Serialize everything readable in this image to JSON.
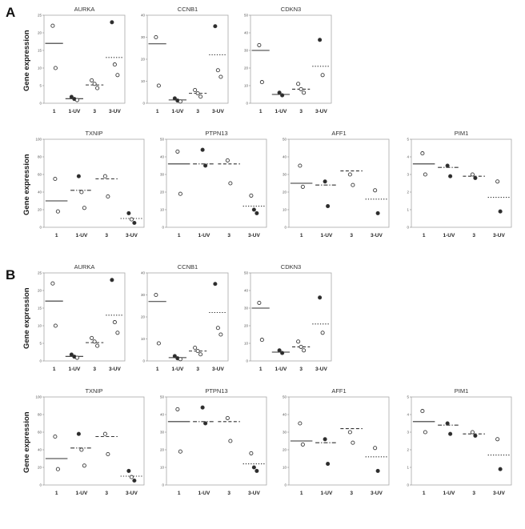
{
  "panels": [
    {
      "label": "A",
      "rows": [
        {
          "ylabel": "Gene expression",
          "plot_ids": [
            "AURKA",
            "CCNB1",
            "CDKN3"
          ]
        },
        {
          "ylabel": "Gene expression",
          "plot_ids": [
            "TXNIP",
            "PTPN13",
            "AFF1",
            "PIM1"
          ]
        }
      ]
    },
    {
      "label": "B",
      "rows": [
        {
          "ylabel": "Gene expression",
          "plot_ids": [
            "AURKA",
            "CCNB1",
            "CDKN3"
          ]
        },
        {
          "ylabel": "Gene expression",
          "plot_ids": [
            "TXNIP",
            "PTPN13",
            "AFF1",
            "PIM1"
          ]
        }
      ]
    }
  ],
  "chart_data": {
    "type": "scatter",
    "categories": [
      "1",
      "1-UV",
      "3",
      "3-UV"
    ],
    "ylabel": "Gene expression",
    "grid": false,
    "legend": "none",
    "plots": [
      {
        "title": "AURKA",
        "ylim": [
          0,
          25
        ],
        "yticks": [
          0,
          5,
          10,
          15,
          20,
          25
        ],
        "groups": [
          {
            "category": "1",
            "median": 17,
            "line": "solid",
            "points": [
              {
                "y": 22,
                "style": "open"
              },
              {
                "y": 10,
                "style": "open"
              }
            ]
          },
          {
            "category": "1-UV",
            "median": 1.3,
            "line": "solid",
            "points": [
              {
                "y": 1.8,
                "style": "filled"
              },
              {
                "y": 1.2,
                "style": "filled"
              },
              {
                "y": 0.9,
                "style": "open"
              }
            ]
          },
          {
            "category": "3",
            "median": 5.2,
            "line": "dashed",
            "points": [
              {
                "y": 6.5,
                "style": "open"
              },
              {
                "y": 5.5,
                "style": "open"
              },
              {
                "y": 4.3,
                "style": "open"
              }
            ]
          },
          {
            "category": "3-UV",
            "median": 13,
            "line": "dotted",
            "points": [
              {
                "y": 23,
                "style": "filled"
              },
              {
                "y": 11,
                "style": "open"
              },
              {
                "y": 8,
                "style": "open"
              }
            ]
          }
        ]
      },
      {
        "title": "CCNB1",
        "ylim": [
          0,
          40
        ],
        "yticks": [
          0,
          10,
          20,
          30,
          40
        ],
        "groups": [
          {
            "category": "1",
            "median": 27,
            "line": "solid",
            "points": [
              {
                "y": 30,
                "style": "open"
              },
              {
                "y": 8,
                "style": "open"
              }
            ]
          },
          {
            "category": "1-UV",
            "median": 1.5,
            "line": "solid",
            "points": [
              {
                "y": 2.2,
                "style": "filled"
              },
              {
                "y": 1.2,
                "style": "filled"
              },
              {
                "y": 0.8,
                "style": "open"
              }
            ]
          },
          {
            "category": "3",
            "median": 4.5,
            "line": "dashed",
            "points": [
              {
                "y": 6,
                "style": "open"
              },
              {
                "y": 4.5,
                "style": "open"
              },
              {
                "y": 3,
                "style": "open"
              }
            ]
          },
          {
            "category": "3-UV",
            "median": 22,
            "line": "dotted",
            "points": [
              {
                "y": 35,
                "style": "filled"
              },
              {
                "y": 15,
                "style": "open"
              },
              {
                "y": 12,
                "style": "open"
              }
            ]
          }
        ]
      },
      {
        "title": "CDKN3",
        "ylim": [
          0,
          50
        ],
        "yticks": [
          0,
          10,
          20,
          30,
          40,
          50
        ],
        "groups": [
          {
            "category": "1",
            "median": 30,
            "line": "solid",
            "points": [
              {
                "y": 33,
                "style": "open"
              },
              {
                "y": 12,
                "style": "open"
              }
            ]
          },
          {
            "category": "1-UV",
            "median": 5,
            "line": "solid",
            "points": [
              {
                "y": 6,
                "style": "filled"
              },
              {
                "y": 4.5,
                "style": "filled"
              }
            ]
          },
          {
            "category": "3",
            "median": 8,
            "line": "dashed",
            "points": [
              {
                "y": 11,
                "style": "open"
              },
              {
                "y": 8,
                "style": "open"
              },
              {
                "y": 6,
                "style": "open"
              }
            ]
          },
          {
            "category": "3-UV",
            "median": 21,
            "line": "dotted",
            "points": [
              {
                "y": 36,
                "style": "filled"
              },
              {
                "y": 16,
                "style": "open"
              }
            ]
          }
        ]
      },
      {
        "title": "TXNIP",
        "ylim": [
          0,
          100
        ],
        "yticks": [
          0,
          20,
          40,
          60,
          80,
          100
        ],
        "groups": [
          {
            "category": "1",
            "median": 30,
            "line": "solid",
            "points": [
              {
                "y": 55,
                "style": "open"
              },
              {
                "y": 18,
                "style": "open"
              }
            ]
          },
          {
            "category": "1-UV",
            "median": 42,
            "line": "dashdot",
            "points": [
              {
                "y": 58,
                "style": "filled"
              },
              {
                "y": 40,
                "style": "open"
              },
              {
                "y": 22,
                "style": "open"
              }
            ]
          },
          {
            "category": "3",
            "median": 55,
            "line": "dashed",
            "points": [
              {
                "y": 58,
                "style": "open"
              },
              {
                "y": 35,
                "style": "open"
              }
            ]
          },
          {
            "category": "3-UV",
            "median": 10,
            "line": "dotted",
            "points": [
              {
                "y": 16,
                "style": "filled"
              },
              {
                "y": 9,
                "style": "open"
              },
              {
                "y": 5,
                "style": "filled"
              }
            ]
          }
        ]
      },
      {
        "title": "PTPN13",
        "ylim": [
          0,
          50
        ],
        "yticks": [
          0,
          10,
          20,
          30,
          40,
          50
        ],
        "groups": [
          {
            "category": "1",
            "median": 36,
            "line": "solid",
            "points": [
              {
                "y": 43,
                "style": "open"
              },
              {
                "y": 19,
                "style": "open"
              }
            ]
          },
          {
            "category": "1-UV",
            "median": 36,
            "line": "dashdot",
            "points": [
              {
                "y": 44,
                "style": "filled"
              },
              {
                "y": 35,
                "style": "filled"
              }
            ]
          },
          {
            "category": "3",
            "median": 36,
            "line": "dashed",
            "points": [
              {
                "y": 38,
                "style": "open"
              },
              {
                "y": 25,
                "style": "open"
              }
            ]
          },
          {
            "category": "3-UV",
            "median": 12,
            "line": "dotted",
            "points": [
              {
                "y": 18,
                "style": "open"
              },
              {
                "y": 10,
                "style": "filled"
              },
              {
                "y": 8,
                "style": "filled"
              }
            ]
          }
        ]
      },
      {
        "title": "AFF1",
        "ylim": [
          0,
          50
        ],
        "yticks": [
          0,
          10,
          20,
          30,
          40,
          50
        ],
        "groups": [
          {
            "category": "1",
            "median": 25,
            "line": "solid",
            "points": [
              {
                "y": 35,
                "style": "open"
              },
              {
                "y": 23,
                "style": "open"
              }
            ]
          },
          {
            "category": "1-UV",
            "median": 24,
            "line": "dashdot",
            "points": [
              {
                "y": 26,
                "style": "filled"
              },
              {
                "y": 12,
                "style": "filled"
              }
            ]
          },
          {
            "category": "3",
            "median": 32,
            "line": "dashed",
            "points": [
              {
                "y": 30,
                "style": "open"
              },
              {
                "y": 24,
                "style": "open"
              }
            ]
          },
          {
            "category": "3-UV",
            "median": 16,
            "line": "dotted",
            "points": [
              {
                "y": 21,
                "style": "open"
              },
              {
                "y": 8,
                "style": "filled"
              }
            ]
          }
        ]
      },
      {
        "title": "PIM1",
        "ylim": [
          0,
          5
        ],
        "yticks": [
          0,
          1,
          2,
          3,
          4,
          5
        ],
        "groups": [
          {
            "category": "1",
            "median": 3.6,
            "line": "solid",
            "points": [
              {
                "y": 4.2,
                "style": "open"
              },
              {
                "y": 3.0,
                "style": "open"
              }
            ]
          },
          {
            "category": "1-UV",
            "median": 3.4,
            "line": "dashdot",
            "points": [
              {
                "y": 3.5,
                "style": "filled"
              },
              {
                "y": 2.9,
                "style": "filled"
              }
            ]
          },
          {
            "category": "3",
            "median": 2.9,
            "line": "dashed",
            "points": [
              {
                "y": 3.0,
                "style": "open"
              },
              {
                "y": 2.8,
                "style": "filled"
              }
            ]
          },
          {
            "category": "3-UV",
            "median": 1.7,
            "line": "dotted",
            "points": [
              {
                "y": 2.6,
                "style": "open"
              },
              {
                "y": 0.9,
                "style": "filled"
              }
            ]
          }
        ]
      }
    ]
  },
  "colors": {
    "point_stroke": "#3a3a3a",
    "point_fill": "#2b2b2b",
    "median_line": "#333333",
    "axis_box": "#a8a8a8",
    "text": "#333333"
  }
}
